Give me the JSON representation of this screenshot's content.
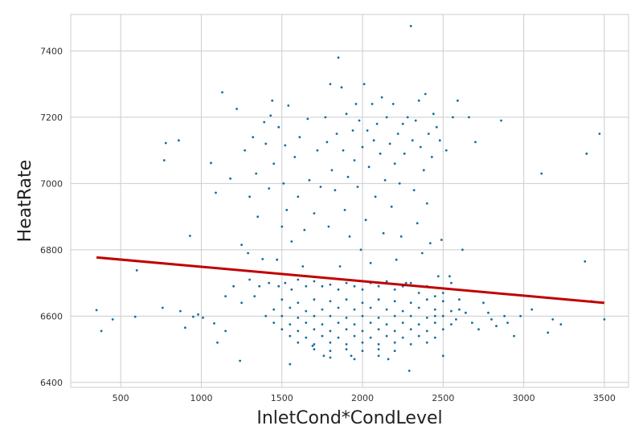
{
  "chart_data": {
    "type": "scatter",
    "title": "",
    "xlabel": "InletCond*CondLevel",
    "ylabel": "HeatRate",
    "xlim": [
      190,
      3650
    ],
    "ylim": [
      6385,
      7510
    ],
    "x_ticks": [
      500,
      1000,
      1500,
      2000,
      2500,
      3000,
      3500
    ],
    "y_ticks": [
      6400,
      6600,
      6800,
      7000,
      7200,
      7400
    ],
    "grid": true,
    "point_color": "#0e6e9c",
    "fit_line_color": "#c00000",
    "grid_color": "#cccccc",
    "fit_line": {
      "x": [
        350,
        3500
      ],
      "y": [
        6777,
        6640
      ]
    },
    "series": [
      {
        "type": "scatter",
        "points": [
          [
            350,
            6618
          ],
          [
            380,
            6555
          ],
          [
            450,
            6590
          ],
          [
            590,
            6598
          ],
          [
            600,
            6738
          ],
          [
            760,
            6625
          ],
          [
            770,
            7070
          ],
          [
            780,
            7122
          ],
          [
            860,
            7130
          ],
          [
            870,
            6615
          ],
          [
            900,
            6565
          ],
          [
            930,
            6842
          ],
          [
            950,
            6598
          ],
          [
            980,
            6605
          ],
          [
            1010,
            6595
          ],
          [
            1060,
            7062
          ],
          [
            1080,
            6578
          ],
          [
            1090,
            6972
          ],
          [
            1100,
            6520
          ],
          [
            1130,
            7275
          ],
          [
            1150,
            6555
          ],
          [
            1180,
            7015
          ],
          [
            1220,
            7225
          ],
          [
            1240,
            6465
          ],
          [
            1250,
            6815
          ],
          [
            1270,
            7100
          ],
          [
            1290,
            6790
          ],
          [
            1300,
            6960
          ],
          [
            1320,
            7140
          ],
          [
            1340,
            7030
          ],
          [
            1350,
            6900
          ],
          [
            1380,
            6772
          ],
          [
            1390,
            7185
          ],
          [
            1400,
            7120
          ],
          [
            1420,
            6985
          ],
          [
            1430,
            7205
          ],
          [
            1440,
            7250
          ],
          [
            1450,
            7060
          ],
          [
            1470,
            6770
          ],
          [
            1480,
            7170
          ],
          [
            1500,
            6870
          ],
          [
            1510,
            7000
          ],
          [
            1520,
            7115
          ],
          [
            1530,
            6920
          ],
          [
            1540,
            7235
          ],
          [
            1550,
            6455
          ],
          [
            1560,
            6825
          ],
          [
            1580,
            7080
          ],
          [
            1600,
            6960
          ],
          [
            1610,
            7140
          ],
          [
            1630,
            6750
          ],
          [
            1640,
            6860
          ],
          [
            1660,
            7195
          ],
          [
            1670,
            7010
          ],
          [
            1690,
            6510
          ],
          [
            1700,
            6910
          ],
          [
            1720,
            7100
          ],
          [
            1740,
            6990
          ],
          [
            1760,
            6480
          ],
          [
            1770,
            7200
          ],
          [
            1780,
            7125
          ],
          [
            1790,
            6870
          ],
          [
            1800,
            7300
          ],
          [
            1810,
            7040
          ],
          [
            1830,
            6980
          ],
          [
            1840,
            7150
          ],
          [
            1850,
            7380
          ],
          [
            1860,
            6750
          ],
          [
            1870,
            7290
          ],
          [
            1880,
            7100
          ],
          [
            1890,
            6920
          ],
          [
            1900,
            7210
          ],
          [
            1910,
            7020
          ],
          [
            1920,
            6840
          ],
          [
            1930,
            6480
          ],
          [
            1940,
            7160
          ],
          [
            1950,
            7070
          ],
          [
            1960,
            7240
          ],
          [
            1970,
            6990
          ],
          [
            1980,
            7190
          ],
          [
            1990,
            6800
          ],
          [
            2000,
            7110
          ],
          [
            2010,
            7300
          ],
          [
            2020,
            6890
          ],
          [
            2030,
            7160
          ],
          [
            2040,
            7050
          ],
          [
            2050,
            6760
          ],
          [
            2060,
            7240
          ],
          [
            2070,
            7130
          ],
          [
            2080,
            6960
          ],
          [
            2090,
            7180
          ],
          [
            2100,
            6700
          ],
          [
            2110,
            7090
          ],
          [
            2120,
            7260
          ],
          [
            2130,
            6850
          ],
          [
            2140,
            7010
          ],
          [
            2150,
            7200
          ],
          [
            2160,
            6470
          ],
          [
            2170,
            7120
          ],
          [
            2180,
            6930
          ],
          [
            2190,
            7240
          ],
          [
            2200,
            7060
          ],
          [
            2210,
            6770
          ],
          [
            2220,
            7150
          ],
          [
            2230,
            7000
          ],
          [
            2240,
            6840
          ],
          [
            2250,
            7180
          ],
          [
            2260,
            7090
          ],
          [
            2270,
            6700
          ],
          [
            2280,
            7200
          ],
          [
            2290,
            6435
          ],
          [
            2300,
            7475
          ],
          [
            2310,
            7130
          ],
          [
            2320,
            6980
          ],
          [
            2330,
            7190
          ],
          [
            2340,
            6880
          ],
          [
            2350,
            7250
          ],
          [
            2360,
            7110
          ],
          [
            2370,
            6790
          ],
          [
            2380,
            7040
          ],
          [
            2390,
            7270
          ],
          [
            2400,
            6940
          ],
          [
            2410,
            7150
          ],
          [
            2420,
            6820
          ],
          [
            2430,
            7080
          ],
          [
            2440,
            7210
          ],
          [
            2450,
            6600
          ],
          [
            2460,
            7170
          ],
          [
            2470,
            6720
          ],
          [
            2480,
            7130
          ],
          [
            2490,
            6830
          ],
          [
            2500,
            6480
          ],
          [
            2520,
            7100
          ],
          [
            2540,
            6720
          ],
          [
            2560,
            7200
          ],
          [
            2580,
            6590
          ],
          [
            2590,
            7250
          ],
          [
            2600,
            6620
          ],
          [
            2620,
            6800
          ],
          [
            2640,
            6610
          ],
          [
            2660,
            7200
          ],
          [
            2680,
            6580
          ],
          [
            2700,
            7125
          ],
          [
            2720,
            6560
          ],
          [
            2750,
            6640
          ],
          [
            2780,
            6610
          ],
          [
            2800,
            6590
          ],
          [
            2830,
            6570
          ],
          [
            2860,
            7190
          ],
          [
            2880,
            6600
          ],
          [
            2900,
            6580
          ],
          [
            2940,
            6540
          ],
          [
            2980,
            6600
          ],
          [
            3050,
            6620
          ],
          [
            3110,
            7030
          ],
          [
            3150,
            6550
          ],
          [
            3180,
            6590
          ],
          [
            3230,
            6575
          ],
          [
            3380,
            6765
          ],
          [
            3390,
            7090
          ],
          [
            3420,
            6645
          ],
          [
            3470,
            7150
          ],
          [
            3500,
            6590
          ],
          [
            1150,
            6660
          ],
          [
            1200,
            6690
          ],
          [
            1250,
            6640
          ],
          [
            1300,
            6710
          ],
          [
            1330,
            6660
          ],
          [
            1360,
            6690
          ],
          [
            1420,
            6700
          ],
          [
            1480,
            6690
          ],
          [
            1520,
            6700
          ],
          [
            1560,
            6680
          ],
          [
            1600,
            6710
          ],
          [
            1650,
            6690
          ],
          [
            1700,
            6705
          ],
          [
            1750,
            6690
          ],
          [
            1800,
            6695
          ],
          [
            1850,
            6680
          ],
          [
            1900,
            6700
          ],
          [
            1950,
            6690
          ],
          [
            2000,
            6680
          ],
          [
            2050,
            6700
          ],
          [
            2100,
            6690
          ],
          [
            2150,
            6705
          ],
          [
            2200,
            6680
          ],
          [
            2250,
            6690
          ],
          [
            2300,
            6700
          ],
          [
            2350,
            6670
          ],
          [
            2400,
            6690
          ],
          [
            2450,
            6660
          ],
          [
            2500,
            6670
          ],
          [
            2550,
            6700
          ],
          [
            1500,
            6650
          ],
          [
            1600,
            6640
          ],
          [
            1700,
            6650
          ],
          [
            1800,
            6645
          ],
          [
            1900,
            6650
          ],
          [
            2000,
            6640
          ],
          [
            2100,
            6650
          ],
          [
            2200,
            6645
          ],
          [
            2300,
            6640
          ],
          [
            2400,
            6650
          ],
          [
            2500,
            6645
          ],
          [
            2600,
            6650
          ],
          [
            1450,
            6620
          ],
          [
            1550,
            6625
          ],
          [
            1650,
            6615
          ],
          [
            1750,
            6620
          ],
          [
            1850,
            6625
          ],
          [
            1950,
            6620
          ],
          [
            2050,
            6625
          ],
          [
            2150,
            6620
          ],
          [
            2250,
            6615
          ],
          [
            2350,
            6625
          ],
          [
            2450,
            6620
          ],
          [
            2550,
            6615
          ],
          [
            1400,
            6600
          ],
          [
            1500,
            6600
          ],
          [
            1600,
            6595
          ],
          [
            1700,
            6600
          ],
          [
            1800,
            6600
          ],
          [
            1900,
            6595
          ],
          [
            2000,
            6600
          ],
          [
            2100,
            6595
          ],
          [
            2200,
            6600
          ],
          [
            2300,
            6600
          ],
          [
            2400,
            6595
          ],
          [
            2500,
            6600
          ],
          [
            1450,
            6580
          ],
          [
            1550,
            6575
          ],
          [
            1650,
            6580
          ],
          [
            1750,
            6575
          ],
          [
            1850,
            6580
          ],
          [
            1950,
            6575
          ],
          [
            2050,
            6580
          ],
          [
            2150,
            6575
          ],
          [
            2250,
            6580
          ],
          [
            2350,
            6575
          ],
          [
            2450,
            6580
          ],
          [
            2550,
            6575
          ],
          [
            1500,
            6560
          ],
          [
            1600,
            6555
          ],
          [
            1700,
            6560
          ],
          [
            1800,
            6555
          ],
          [
            1900,
            6560
          ],
          [
            2000,
            6555
          ],
          [
            2100,
            6560
          ],
          [
            2200,
            6555
          ],
          [
            2300,
            6560
          ],
          [
            2400,
            6555
          ],
          [
            2500,
            6560
          ],
          [
            1550,
            6540
          ],
          [
            1650,
            6535
          ],
          [
            1750,
            6540
          ],
          [
            1850,
            6535
          ],
          [
            1950,
            6540
          ],
          [
            2050,
            6535
          ],
          [
            2150,
            6540
          ],
          [
            2250,
            6535
          ],
          [
            2350,
            6540
          ],
          [
            2450,
            6535
          ],
          [
            1600,
            6520
          ],
          [
            1700,
            6515
          ],
          [
            1800,
            6520
          ],
          [
            1900,
            6515
          ],
          [
            2000,
            6520
          ],
          [
            2100,
            6515
          ],
          [
            2200,
            6520
          ],
          [
            2300,
            6515
          ],
          [
            2400,
            6520
          ],
          [
            1700,
            6500
          ],
          [
            1800,
            6495
          ],
          [
            1900,
            6500
          ],
          [
            2000,
            6495
          ],
          [
            2100,
            6500
          ],
          [
            2200,
            6495
          ],
          [
            1800,
            6475
          ],
          [
            1950,
            6470
          ],
          [
            2100,
            6480
          ]
        ]
      }
    ]
  }
}
